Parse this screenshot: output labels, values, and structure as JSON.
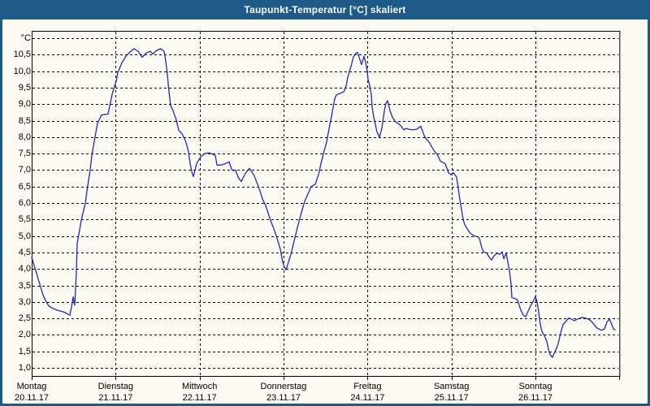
{
  "window": {
    "title": "Taupunkt-Temperatur [°C] skaliert",
    "title_bar_color": "#1d5a87",
    "border_color": "#1d5a87",
    "content_background": "#fbfbf1"
  },
  "chart_data": {
    "type": "line",
    "title": "Taupunkt-Temperatur [°C] skaliert",
    "unit_label": "°C",
    "line_color": "#2323c8",
    "grid_color": "#000000",
    "grid_style": "dashed",
    "legend": "none",
    "y_axis": {
      "min": 1.0,
      "max": 11.0,
      "step": 0.5,
      "labels_top_to_bottom": [
        "°C",
        "10,5",
        "10,0",
        "9,5",
        "9,0",
        "8,5",
        "8,0",
        "7,5",
        "7,0",
        "6,5",
        "6,0",
        "5,5",
        "5,0",
        "4,5",
        "4,0",
        "3,5",
        "3,0",
        "2,5",
        "2,0",
        "1,5",
        "1,0"
      ]
    },
    "x_axis": {
      "unit": "days",
      "range_days": 7,
      "days": [
        {
          "label": "Montag",
          "date": "20.11.17"
        },
        {
          "label": "Dienstag",
          "date": "21.11.17"
        },
        {
          "label": "Mittwoch",
          "date": "22.11.17"
        },
        {
          "label": "Donnerstag",
          "date": "23.11.17"
        },
        {
          "label": "Freitag",
          "date": "24.11.17"
        },
        {
          "label": "Samstag",
          "date": "25.11.17"
        },
        {
          "label": "Sonntag",
          "date": "26.11.17"
        }
      ]
    },
    "series": [
      {
        "name": "Taupunkt-Temperatur",
        "points": [
          [
            0.0,
            4.35
          ],
          [
            0.029,
            4.1
          ],
          [
            0.058,
            3.87
          ],
          [
            0.106,
            3.45
          ],
          [
            0.135,
            3.21
          ],
          [
            0.174,
            3.0
          ],
          [
            0.203,
            2.88
          ],
          [
            0.252,
            2.8
          ],
          [
            0.3,
            2.75
          ],
          [
            0.348,
            2.72
          ],
          [
            0.397,
            2.68
          ],
          [
            0.435,
            2.62
          ],
          [
            0.455,
            2.6
          ],
          [
            0.474,
            2.85
          ],
          [
            0.494,
            3.15
          ],
          [
            0.513,
            2.9
          ],
          [
            0.532,
            3.9
          ],
          [
            0.542,
            4.77
          ],
          [
            0.59,
            5.47
          ],
          [
            0.639,
            6.0
          ],
          [
            0.668,
            6.53
          ],
          [
            0.697,
            7.0
          ],
          [
            0.716,
            7.45
          ],
          [
            0.755,
            8.0
          ],
          [
            0.784,
            8.42
          ],
          [
            0.832,
            8.67
          ],
          [
            0.91,
            8.7
          ],
          [
            0.958,
            9.3
          ],
          [
            0.987,
            9.55
          ],
          [
            1.007,
            9.7
          ],
          [
            1.026,
            9.95
          ],
          [
            1.074,
            10.25
          ],
          [
            1.122,
            10.45
          ],
          [
            1.171,
            10.58
          ],
          [
            1.219,
            10.68
          ],
          [
            1.268,
            10.6
          ],
          [
            1.316,
            10.42
          ],
          [
            1.364,
            10.55
          ],
          [
            1.413,
            10.6
          ],
          [
            1.442,
            10.52
          ],
          [
            1.49,
            10.63
          ],
          [
            1.539,
            10.68
          ],
          [
            1.577,
            10.6
          ],
          [
            1.597,
            10.3
          ],
          [
            1.616,
            9.9
          ],
          [
            1.635,
            9.4
          ],
          [
            1.655,
            8.95
          ],
          [
            1.684,
            8.8
          ],
          [
            1.723,
            8.52
          ],
          [
            1.752,
            8.2
          ],
          [
            1.79,
            8.1
          ],
          [
            1.829,
            7.9
          ],
          [
            1.848,
            7.75
          ],
          [
            1.868,
            7.55
          ],
          [
            1.887,
            7.2
          ],
          [
            1.906,
            6.95
          ],
          [
            1.926,
            6.8
          ],
          [
            1.965,
            7.2
          ],
          [
            2.013,
            7.4
          ],
          [
            2.061,
            7.5
          ],
          [
            2.11,
            7.52
          ],
          [
            2.158,
            7.48
          ],
          [
            2.187,
            7.44
          ],
          [
            2.206,
            7.15
          ],
          [
            2.255,
            7.15
          ],
          [
            2.303,
            7.19
          ],
          [
            2.352,
            7.25
          ],
          [
            2.381,
            7.03
          ],
          [
            2.4,
            6.98
          ],
          [
            2.429,
            7.0
          ],
          [
            2.458,
            6.78
          ],
          [
            2.497,
            6.65
          ],
          [
            2.545,
            6.9
          ],
          [
            2.594,
            7.05
          ],
          [
            2.623,
            6.94
          ],
          [
            2.652,
            6.82
          ],
          [
            2.69,
            6.57
          ],
          [
            2.719,
            6.37
          ],
          [
            2.748,
            6.12
          ],
          [
            2.787,
            5.92
          ],
          [
            2.816,
            5.7
          ],
          [
            2.845,
            5.47
          ],
          [
            2.884,
            5.22
          ],
          [
            2.913,
            5.0
          ],
          [
            2.932,
            4.85
          ],
          [
            2.961,
            4.6
          ],
          [
            2.99,
            4.2
          ],
          [
            3.01,
            4.05
          ],
          [
            3.029,
            3.97
          ],
          [
            3.058,
            4.2
          ],
          [
            3.087,
            4.45
          ],
          [
            3.116,
            4.75
          ],
          [
            3.145,
            5.05
          ],
          [
            3.174,
            5.35
          ],
          [
            3.223,
            5.8
          ],
          [
            3.252,
            6.05
          ],
          [
            3.3,
            6.33
          ],
          [
            3.329,
            6.5
          ],
          [
            3.377,
            6.57
          ],
          [
            3.416,
            6.86
          ],
          [
            3.445,
            7.19
          ],
          [
            3.474,
            7.5
          ],
          [
            3.513,
            7.85
          ],
          [
            3.542,
            8.25
          ],
          [
            3.561,
            8.5
          ],
          [
            3.59,
            8.9
          ],
          [
            3.61,
            9.16
          ],
          [
            3.629,
            9.28
          ],
          [
            3.668,
            9.32
          ],
          [
            3.716,
            9.37
          ],
          [
            3.745,
            9.55
          ],
          [
            3.765,
            9.82
          ],
          [
            3.803,
            10.14
          ],
          [
            3.832,
            10.43
          ],
          [
            3.861,
            10.55
          ],
          [
            3.881,
            10.57
          ],
          [
            3.91,
            10.35
          ],
          [
            3.929,
            10.2
          ],
          [
            3.958,
            10.45
          ],
          [
            3.977,
            10.27
          ],
          [
            3.997,
            10.0
          ],
          [
            4.006,
            9.74
          ],
          [
            4.026,
            9.57
          ],
          [
            4.045,
            9.28
          ],
          [
            4.055,
            8.91
          ],
          [
            4.074,
            8.6
          ],
          [
            4.094,
            8.38
          ],
          [
            4.113,
            8.15
          ],
          [
            4.142,
            8.0
          ],
          [
            4.171,
            8.26
          ],
          [
            4.2,
            8.79
          ],
          [
            4.219,
            9.03
          ],
          [
            4.239,
            9.1
          ],
          [
            4.268,
            8.8
          ],
          [
            4.297,
            8.6
          ],
          [
            4.335,
            8.46
          ],
          [
            4.384,
            8.38
          ],
          [
            4.432,
            8.22
          ],
          [
            4.461,
            8.26
          ],
          [
            4.49,
            8.24
          ],
          [
            4.539,
            8.22
          ],
          [
            4.587,
            8.24
          ],
          [
            4.635,
            8.33
          ],
          [
            4.674,
            8.05
          ],
          [
            4.703,
            7.93
          ],
          [
            4.732,
            7.85
          ],
          [
            4.771,
            7.68
          ],
          [
            4.8,
            7.56
          ],
          [
            4.829,
            7.48
          ],
          [
            4.868,
            7.27
          ],
          [
            4.897,
            7.23
          ],
          [
            4.926,
            7.19
          ],
          [
            4.965,
            6.92
          ],
          [
            4.994,
            6.86
          ],
          [
            5.023,
            6.92
          ],
          [
            5.061,
            6.78
          ],
          [
            5.081,
            6.45
          ],
          [
            5.1,
            6.1
          ],
          [
            5.119,
            5.8
          ],
          [
            5.139,
            5.5
          ],
          [
            5.158,
            5.34
          ],
          [
            5.177,
            5.26
          ],
          [
            5.206,
            5.14
          ],
          [
            5.235,
            5.06
          ],
          [
            5.274,
            5.0
          ],
          [
            5.313,
            4.97
          ],
          [
            5.332,
            4.93
          ],
          [
            5.361,
            4.64
          ],
          [
            5.381,
            4.52
          ],
          [
            5.419,
            4.48
          ],
          [
            5.448,
            4.36
          ],
          [
            5.477,
            4.27
          ],
          [
            5.506,
            4.4
          ],
          [
            5.545,
            4.48
          ],
          [
            5.574,
            4.44
          ],
          [
            5.603,
            4.52
          ],
          [
            5.623,
            4.31
          ],
          [
            5.652,
            4.48
          ],
          [
            5.69,
            3.94
          ],
          [
            5.71,
            3.55
          ],
          [
            5.719,
            3.13
          ],
          [
            5.768,
            3.09
          ],
          [
            5.787,
            3.05
          ],
          [
            5.806,
            2.9
          ],
          [
            5.826,
            2.75
          ],
          [
            5.855,
            2.6
          ],
          [
            5.884,
            2.55
          ],
          [
            5.913,
            2.72
          ],
          [
            5.942,
            2.88
          ],
          [
            5.981,
            3.05
          ],
          [
            6.0,
            3.17
          ],
          [
            6.019,
            3.0
          ],
          [
            6.039,
            2.7
          ],
          [
            6.058,
            2.31
          ],
          [
            6.077,
            2.1
          ],
          [
            6.106,
            1.98
          ],
          [
            6.135,
            1.81
          ],
          [
            6.155,
            1.57
          ],
          [
            6.174,
            1.4
          ],
          [
            6.203,
            1.32
          ],
          [
            6.232,
            1.49
          ],
          [
            6.252,
            1.6
          ],
          [
            6.271,
            1.73
          ],
          [
            6.29,
            1.95
          ],
          [
            6.31,
            2.15
          ],
          [
            6.329,
            2.31
          ],
          [
            6.358,
            2.4
          ],
          [
            6.397,
            2.51
          ],
          [
            6.435,
            2.47
          ],
          [
            6.465,
            2.43
          ],
          [
            6.494,
            2.47
          ],
          [
            6.532,
            2.51
          ],
          [
            6.561,
            2.53
          ],
          [
            6.59,
            2.51
          ],
          [
            6.629,
            2.48
          ],
          [
            6.658,
            2.43
          ],
          [
            6.687,
            2.35
          ],
          [
            6.726,
            2.22
          ],
          [
            6.755,
            2.18
          ],
          [
            6.784,
            2.14
          ],
          [
            6.823,
            2.18
          ],
          [
            6.852,
            2.39
          ],
          [
            6.881,
            2.48
          ],
          [
            6.91,
            2.31
          ],
          [
            6.929,
            2.18
          ],
          [
            6.948,
            2.15
          ]
        ]
      }
    ]
  }
}
